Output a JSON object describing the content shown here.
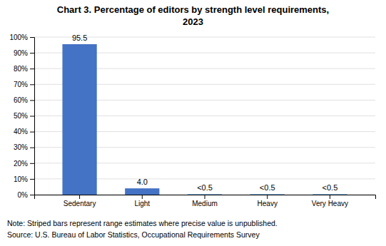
{
  "chart_data": {
    "type": "bar",
    "title": "Chart 3. Percentage of editors by strength level requirements,\n2023",
    "categories": [
      "Sedentary",
      "Light",
      "Medium",
      "Heavy",
      "Very Heavy"
    ],
    "values": [
      95.5,
      4.0,
      0.35,
      0.35,
      0.35
    ],
    "value_labels": [
      "95.5",
      "4.0",
      "<0.5",
      "<0.5",
      "<0.5"
    ],
    "data_labels": true,
    "colors": [
      "#4472C4",
      "#4472C4",
      "#5B9BD5",
      "#5B9BD5",
      "#5B9BD5"
    ],
    "ylim": [
      0,
      100
    ],
    "yticks": [
      {
        "value": 0,
        "label": "0%"
      },
      {
        "value": 10,
        "label": "10%"
      },
      {
        "value": 20,
        "label": "20%"
      },
      {
        "value": 30,
        "label": "30%"
      },
      {
        "value": 40,
        "label": "40%"
      },
      {
        "value": 50,
        "label": "50%"
      },
      {
        "value": 60,
        "label": "60%"
      },
      {
        "value": 70,
        "label": "70%"
      },
      {
        "value": 80,
        "label": "80%"
      },
      {
        "value": 90,
        "label": "90%"
      },
      {
        "value": 100,
        "label": "100%"
      }
    ],
    "grid": true,
    "annotations": [
      "Note: Striped bars represent range estimates where precise value is unpublished.",
      "Source: U.S. Bureau of Labor Statistics, Occupational Requirements Survey"
    ]
  }
}
